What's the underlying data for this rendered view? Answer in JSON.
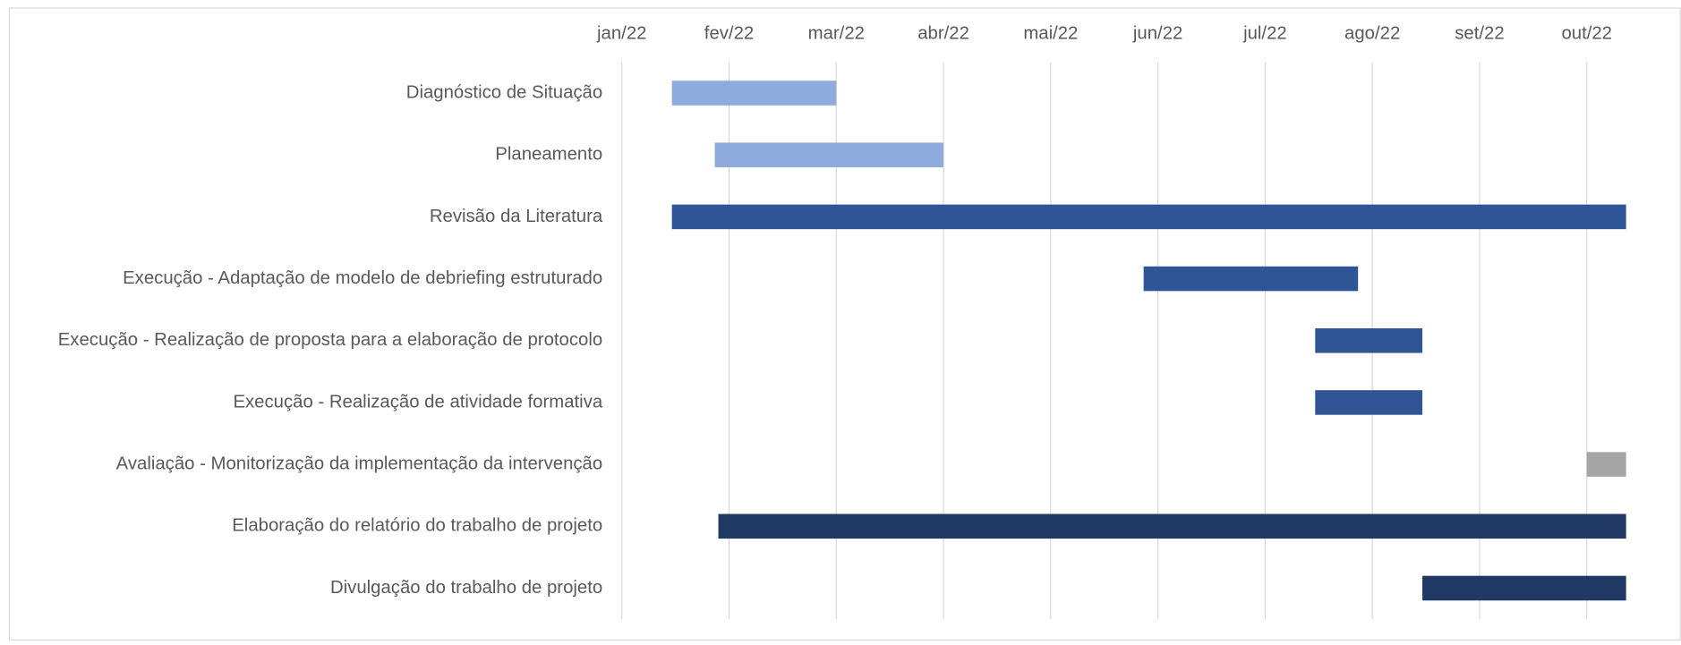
{
  "chart_data": {
    "type": "gantt",
    "categories": [
      "Diagnóstico de Situação",
      "Planeamento",
      "Revisão da Literatura",
      "Execução - Adaptação de modelo de debriefing estruturado",
      "Execução - Realização de proposta para a elaboração de protocolo",
      "Execução - Realização de atividade formativa",
      "Avaliação - Monitorização da implementação da intervenção",
      "Elaboração do relatório do trabalho de projeto",
      "Divulgação do trabalho de projeto"
    ],
    "starts": [
      44576,
      44588,
      44576,
      44708,
      44756,
      44756,
      44832,
      44589,
      44786
    ],
    "durations": [
      46,
      64,
      267,
      60,
      30,
      30,
      11,
      254,
      57
    ],
    "colors": [
      "#8faadc",
      "#8faadc",
      "#2f5597",
      "#2f5597",
      "#2f5597",
      "#2f5597",
      "#a5a5a5",
      "#1f3864",
      "#1f3864"
    ],
    "xlim": [
      44562,
      44843
    ],
    "xticks": [
      {
        "value": 44562,
        "label": "jan/22"
      },
      {
        "value": 44592,
        "label": "fev/22"
      },
      {
        "value": 44622,
        "label": "mar/22"
      },
      {
        "value": 44652,
        "label": "abr/22"
      },
      {
        "value": 44682,
        "label": "mai/22"
      },
      {
        "value": 44712,
        "label": "jun/22"
      },
      {
        "value": 44742,
        "label": "jul/22"
      },
      {
        "value": 44772,
        "label": "ago/22"
      },
      {
        "value": 44802,
        "label": "set/22"
      },
      {
        "value": 44832,
        "label": "out/22"
      }
    ],
    "grid": true
  }
}
